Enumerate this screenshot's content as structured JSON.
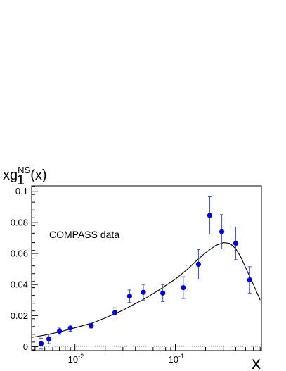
{
  "chart_data": {
    "type": "scatter",
    "ylabel_main": "xg",
    "ylabel_sub": "1",
    "ylabel_sup": "NS",
    "ylabel_tail": "(x)",
    "xlabel": "x",
    "x_scale": "log",
    "xlim": [
      0.0037,
      0.72
    ],
    "ylim": [
      -0.0025,
      0.1035
    ],
    "yticks": [
      0,
      0.02,
      0.04,
      0.06,
      0.08,
      0.1
    ],
    "ytick_labels": [
      "0",
      "0.02",
      "0.04",
      "0.06",
      "0.08",
      "0.1"
    ],
    "xticks_major": [
      0.01,
      0.1
    ],
    "xtick_labels": [
      {
        "base": "10",
        "exp": "-2"
      },
      {
        "base": "10",
        "exp": "-1"
      }
    ],
    "annotation": "COMPASS data",
    "zero_line": true,
    "colors": {
      "points": "#0000dd",
      "errors": "#3b55cf",
      "curve": "#000000"
    },
    "series": [
      {
        "type": "scatter_errorbars",
        "x": [
          0.0046,
          0.0055,
          0.007,
          0.009,
          0.0145,
          0.025,
          0.035,
          0.048,
          0.075,
          0.12,
          0.17,
          0.22,
          0.29,
          0.4,
          0.55
        ],
        "y": [
          0.002,
          0.005,
          0.01,
          0.012,
          0.0135,
          0.022,
          0.0325,
          0.035,
          0.0345,
          0.038,
          0.053,
          0.0845,
          0.074,
          0.0665,
          0.043
        ],
        "yerr": [
          0.0035,
          0.003,
          0.002,
          0.002,
          0.0015,
          0.003,
          0.004,
          0.005,
          0.0055,
          0.007,
          0.0095,
          0.012,
          0.011,
          0.0105,
          0.0085
        ]
      },
      {
        "type": "curve",
        "x": [
          0.0037,
          0.005,
          0.007,
          0.01,
          0.015,
          0.02,
          0.03,
          0.05,
          0.07,
          0.1,
          0.13,
          0.16,
          0.2,
          0.25,
          0.3,
          0.35,
          0.4,
          0.45,
          0.5,
          0.6,
          0.7
        ],
        "y": [
          0.006,
          0.0075,
          0.0095,
          0.0122,
          0.0153,
          0.0185,
          0.0235,
          0.031,
          0.0368,
          0.0435,
          0.0495,
          0.055,
          0.0605,
          0.065,
          0.067,
          0.0665,
          0.063,
          0.0575,
          0.051,
          0.04,
          0.03
        ]
      }
    ]
  }
}
